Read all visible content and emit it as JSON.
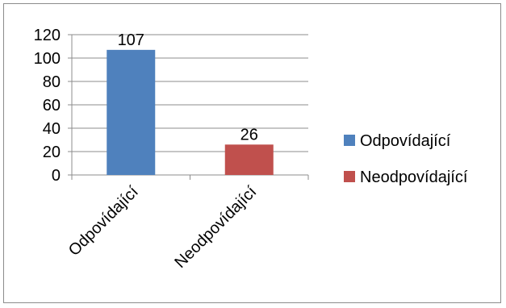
{
  "chart_data": {
    "type": "bar",
    "categories": [
      "Odpovídající",
      "Neodpovídající"
    ],
    "values": [
      107,
      26
    ],
    "colors": [
      "#4f81bd",
      "#c0504d"
    ],
    "ylim": [
      0,
      120
    ],
    "yticks": [
      0,
      20,
      40,
      60,
      80,
      100,
      120
    ],
    "grid": true,
    "data_labels": [
      "107",
      "26"
    ],
    "legend": {
      "position": "right",
      "entries": [
        {
          "label": "Odpovídající",
          "color": "#4f81bd"
        },
        {
          "label": "Neodpovídající",
          "color": "#c0504d"
        }
      ]
    }
  }
}
